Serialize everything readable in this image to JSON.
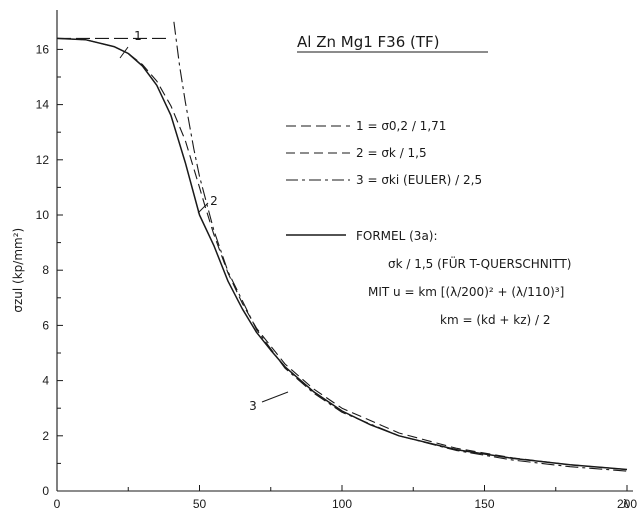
{
  "chart_data": {
    "type": "line",
    "title": "Al Zn Mg1 F36 (TF)",
    "xlabel": "λ",
    "ylabel": "σzul (kp/mm²)",
    "xlim": [
      0,
      210
    ],
    "ylim": [
      0,
      17
    ],
    "x_ticks": [
      "0",
      "50",
      "100",
      "150",
      "200"
    ],
    "y_ticks": [
      "0",
      "2",
      "4",
      "6",
      "8",
      "10",
      "12",
      "14",
      "16"
    ],
    "legend": [
      {
        "key": "1",
        "text": "1 = σ0,2 / 1,71",
        "style": "long-dash"
      },
      {
        "key": "2",
        "text": "2 = σk / 1,5",
        "style": "dash"
      },
      {
        "key": "3",
        "text": "3 = σki (EULER) / 2,5",
        "style": "dash-dot"
      },
      {
        "key": "formel",
        "text": "FORMEL (3a):",
        "style": "solid"
      }
    ],
    "formula_lines": [
      "σk / 1,5 (FÜR T-QUERSCHNITT)",
      "MIT u = km [(λ/200)² + (λ/110)³]",
      "km = (kd + kz) / 2"
    ],
    "curve_labels": [
      "1",
      "2",
      "3"
    ],
    "series": [
      {
        "name": "1",
        "x": [
          0,
          40
        ],
        "y": [
          16.4,
          16.4
        ]
      },
      {
        "name": "2",
        "x": [
          0,
          10,
          20,
          25,
          30,
          35,
          40,
          45,
          50,
          52,
          55,
          60,
          65,
          70,
          80,
          90,
          100,
          120,
          140,
          160,
          180,
          200
        ],
        "y": [
          16.4,
          16.35,
          16.1,
          15.85,
          15.45,
          14.85,
          13.95,
          12.7,
          11.0,
          10.3,
          9.3,
          7.9,
          6.8,
          5.9,
          4.6,
          3.7,
          3.0,
          2.1,
          1.55,
          1.2,
          0.95,
          0.78
        ]
      },
      {
        "name": "3",
        "x": [
          41,
          43,
          45,
          48,
          50,
          55,
          60,
          70,
          80,
          90,
          100,
          120,
          140,
          160,
          180,
          200
        ],
        "y": [
          17.0,
          15.4,
          14.1,
          12.4,
          11.4,
          9.45,
          7.95,
          5.85,
          4.45,
          3.55,
          2.85,
          2.0,
          1.47,
          1.12,
          0.88,
          0.72
        ]
      },
      {
        "name": "FORMEL (3a)",
        "x": [
          0,
          10,
          20,
          25,
          30,
          35,
          40,
          45,
          50,
          55,
          60,
          65,
          70,
          75,
          80,
          90,
          100,
          110,
          120,
          140,
          160,
          180,
          200
        ],
        "y": [
          16.4,
          16.35,
          16.1,
          15.85,
          15.4,
          14.7,
          13.6,
          11.9,
          10.0,
          8.9,
          7.6,
          6.6,
          5.75,
          5.1,
          4.5,
          3.6,
          2.9,
          2.4,
          2.0,
          1.5,
          1.18,
          0.95,
          0.78
        ]
      }
    ]
  }
}
